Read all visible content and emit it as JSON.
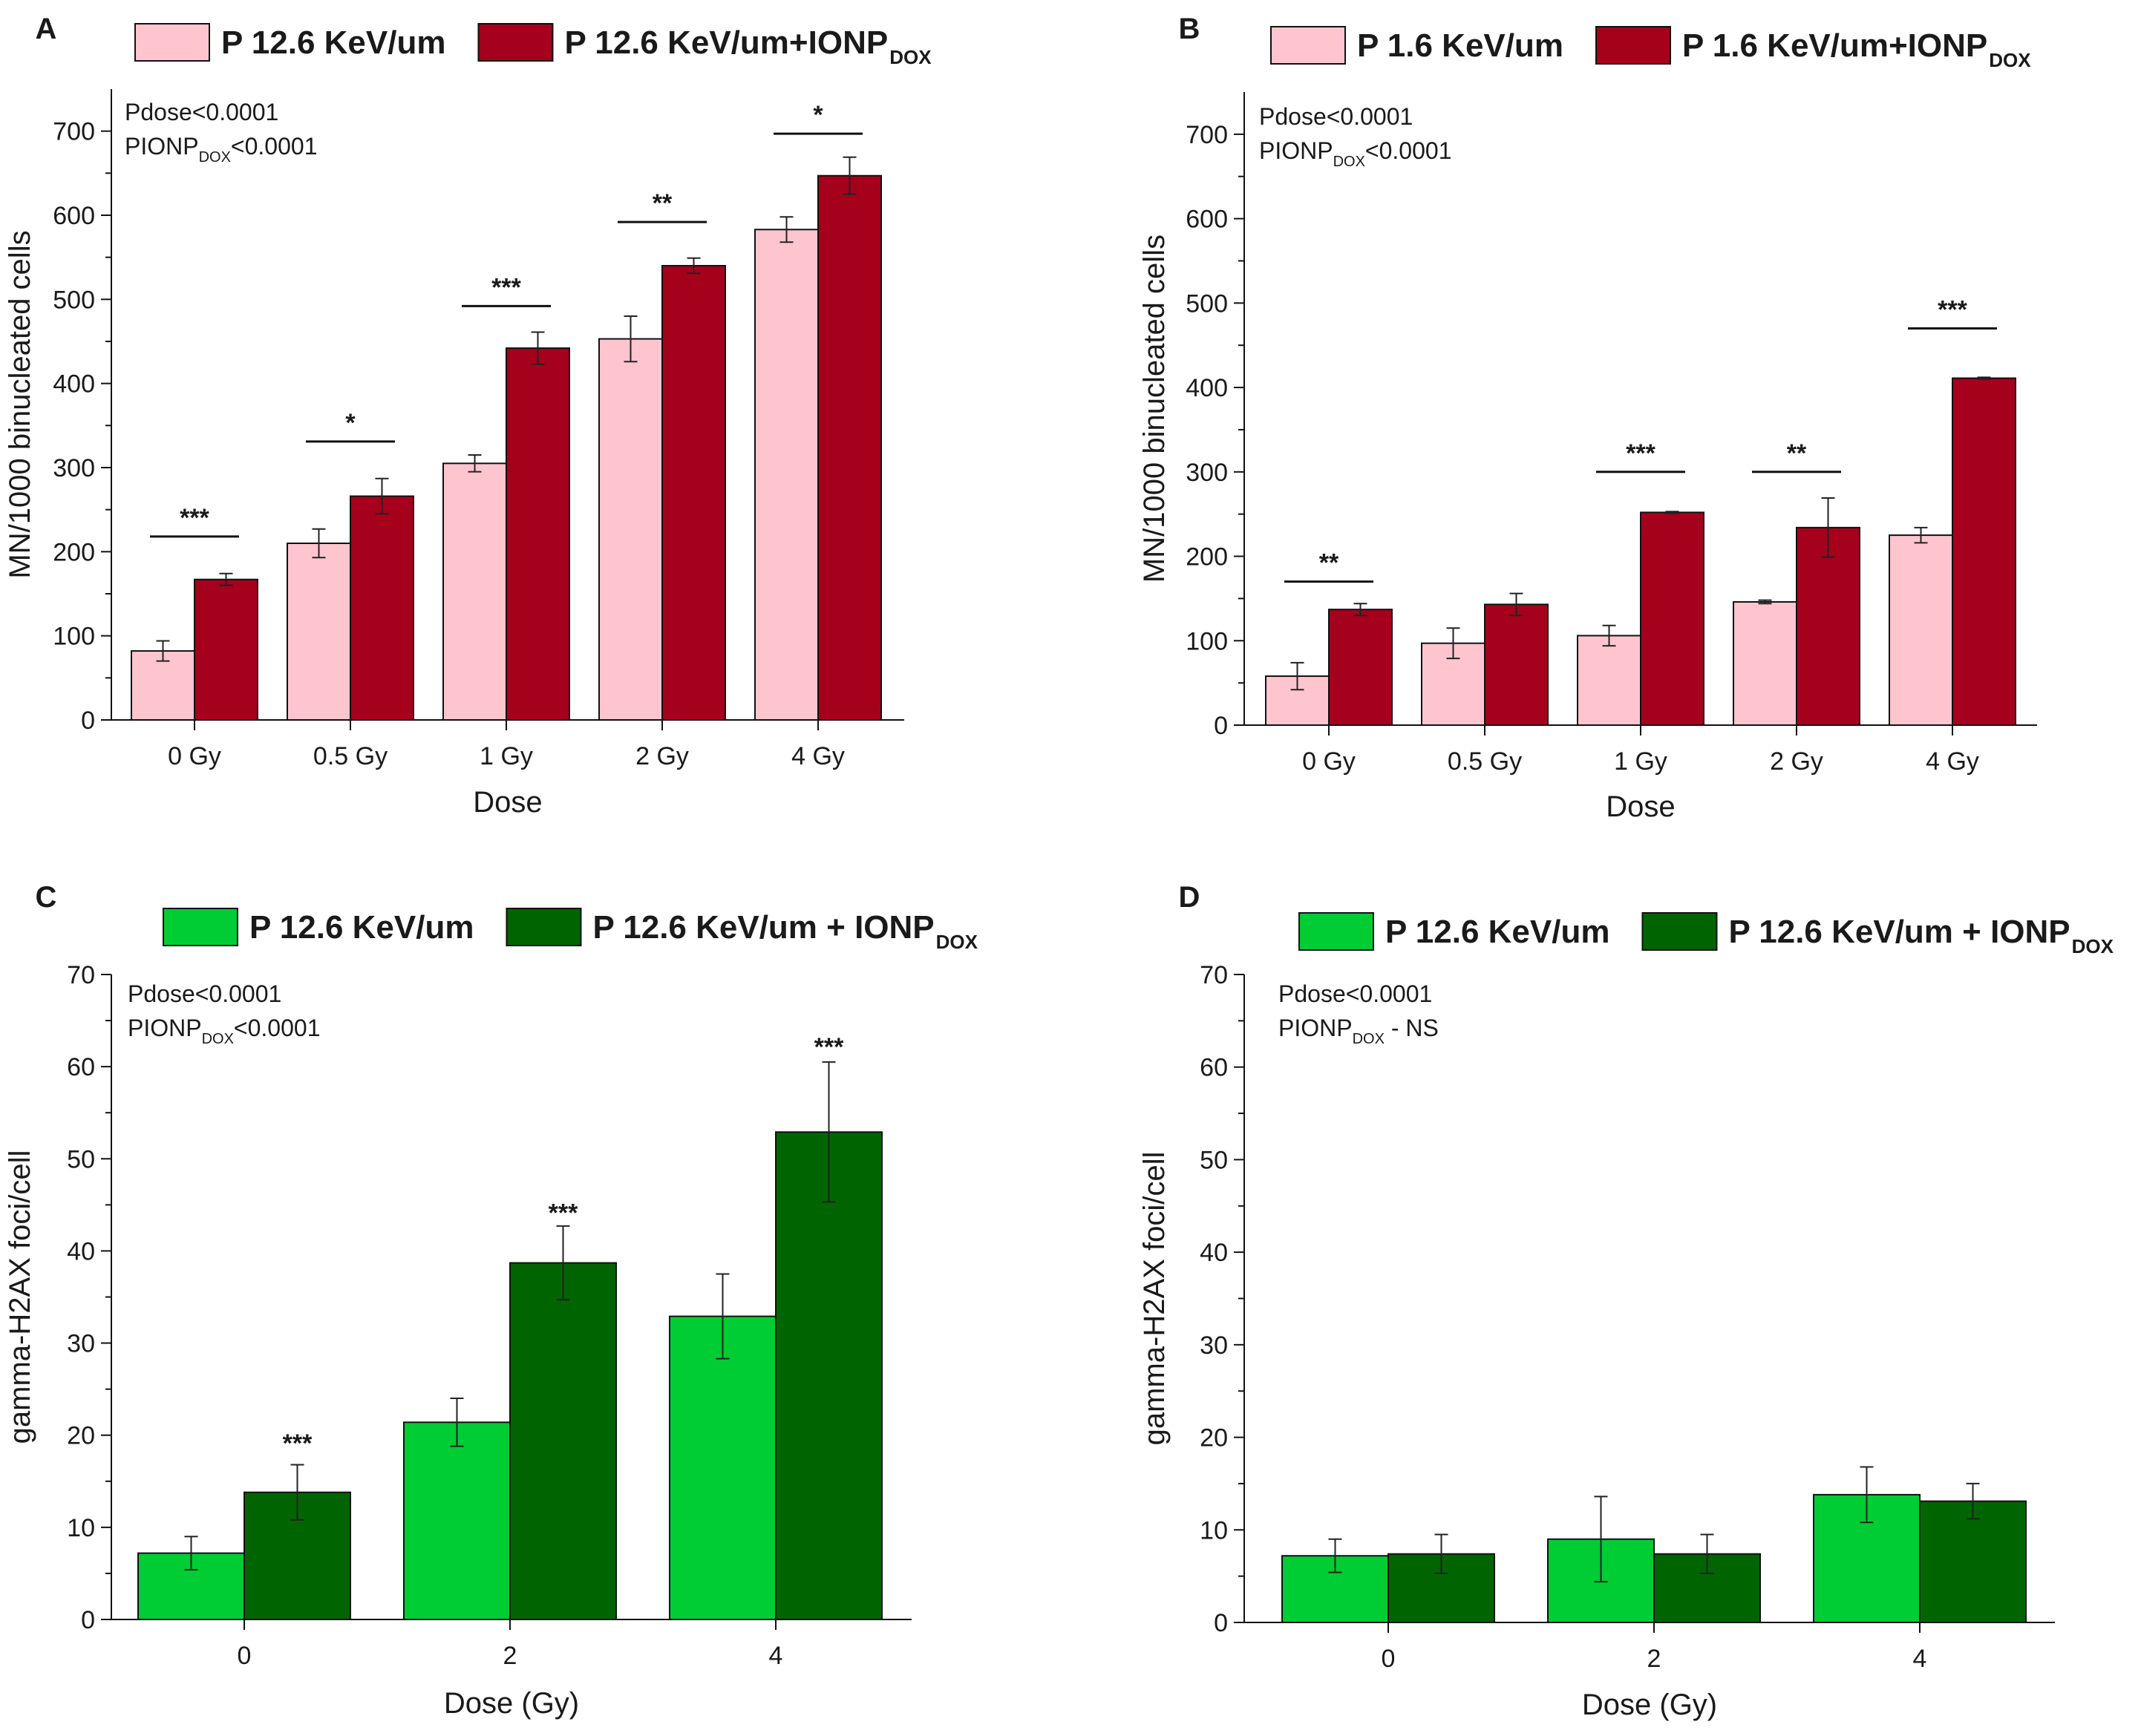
{
  "chart_data": [
    {
      "type": "bar",
      "panel": "A",
      "legend": [
        {
          "name": "P 12.6 KeV/um",
          "sub": ""
        },
        {
          "name": "P 12.6 KeV/um+IONP",
          "sub": "DOX"
        }
      ],
      "annotation": {
        "line1": "Pdose<0.0001",
        "line2_pre": "PIONP",
        "line2_sub": "DOX",
        "line2_post": "<0.0001"
      },
      "xlabel": "Dose",
      "ylabel": "MN/1000 binucleated cells",
      "ylim": [
        0,
        750
      ],
      "yticks": [
        0,
        100,
        200,
        300,
        400,
        500,
        600,
        700
      ],
      "categories": [
        "0 Gy",
        "0.5 Gy",
        "1 Gy",
        "2 Gy",
        "4 Gy"
      ],
      "series": [
        {
          "name": "P 12.6 KeV/um",
          "color": "#ffc5cf",
          "values": [
            82,
            210,
            305,
            453,
            583
          ],
          "errors": [
            12,
            17,
            10,
            27,
            15
          ]
        },
        {
          "name": "P 12.6 KeV/um+IONP DOX",
          "color": "#a5001c",
          "values": [
            167,
            266,
            442,
            540,
            647
          ],
          "errors": [
            7,
            21,
            19,
            9,
            22
          ]
        }
      ],
      "significance": [
        {
          "category": 0,
          "stars": "***",
          "y": 218
        },
        {
          "category": 1,
          "stars": "*",
          "y": 331
        },
        {
          "category": 2,
          "stars": "***",
          "y": 492
        },
        {
          "category": 3,
          "stars": "**",
          "y": 592
        },
        {
          "category": 4,
          "stars": "*",
          "y": 697
        }
      ]
    },
    {
      "type": "bar",
      "panel": "B",
      "legend": [
        {
          "name": "P 1.6 KeV/um",
          "sub": ""
        },
        {
          "name": "P 1.6 KeV/um+IONP",
          "sub": "DOX"
        }
      ],
      "annotation": {
        "line1": "Pdose<0.0001",
        "line2_pre": "PIONP",
        "line2_sub": "DOX",
        "line2_post": "<0.0001"
      },
      "xlabel": "Dose",
      "ylabel": "MN/1000 binucleated cells",
      "ylim": [
        0,
        750
      ],
      "yticks": [
        0,
        100,
        200,
        300,
        400,
        500,
        600,
        700
      ],
      "categories": [
        "0 Gy",
        "0.5 Gy",
        "1 Gy",
        "2 Gy",
        "4 Gy"
      ],
      "series": [
        {
          "name": "P 1.6 KeV/um",
          "color": "#ffc5cf",
          "values": [
            58,
            97,
            106,
            146,
            225
          ],
          "errors": [
            16,
            18,
            12,
            2,
            9
          ]
        },
        {
          "name": "P 1.6 KeV/um+IONP DOX",
          "color": "#a5001c",
          "values": [
            137,
            143,
            252,
            234,
            411
          ],
          "errors": [
            7,
            13,
            1,
            35,
            1
          ]
        }
      ],
      "significance": [
        {
          "category": 0,
          "stars": "**",
          "y": 170
        },
        {
          "category": 2,
          "stars": "***",
          "y": 300
        },
        {
          "category": 3,
          "stars": "**",
          "y": 300
        },
        {
          "category": 4,
          "stars": "***",
          "y": 470
        }
      ]
    },
    {
      "type": "bar",
      "panel": "C",
      "legend": [
        {
          "name": "P 12.6 KeV/um",
          "sub": ""
        },
        {
          "name": "P 12.6 KeV/um + IONP",
          "sub": "DOX"
        }
      ],
      "annotation": {
        "line1": "Pdose<0.0001",
        "line2_pre": "PIONP",
        "line2_sub": "DOX",
        "line2_post": "<0.0001"
      },
      "xlabel": "Dose (Gy)",
      "ylabel": "gamma-H2AX foci/cell",
      "ylim": [
        0,
        70
      ],
      "yticks": [
        0,
        10,
        20,
        30,
        40,
        50,
        60,
        70
      ],
      "categories": [
        "0",
        "2",
        "4"
      ],
      "series": [
        {
          "name": "P 12.6 KeV/um",
          "color": "#00cc33",
          "values": [
            7.2,
            21.4,
            32.9
          ],
          "errors": [
            1.8,
            2.6,
            4.6
          ]
        },
        {
          "name": "P 12.6 KeV/um + IONP DOX",
          "color": "#006400",
          "values": [
            13.8,
            38.7,
            52.9
          ],
          "errors": [
            3.0,
            4.0,
            7.6
          ]
        }
      ],
      "significance": [
        {
          "category": 0,
          "stars": "***",
          "y": 18.2
        },
        {
          "category": 1,
          "stars": "***",
          "y": 43.2
        },
        {
          "category": 2,
          "stars": "***",
          "y": 61.2
        }
      ]
    },
    {
      "type": "bar",
      "panel": "D",
      "legend": [
        {
          "name": "P 12.6 KeV/um",
          "sub": ""
        },
        {
          "name": "P 12.6 KeV/um + IONP",
          "sub": "DOX"
        }
      ],
      "annotation": {
        "line1": "Pdose<0.0001",
        "line2_pre": "PIONP",
        "line2_sub": "DOX",
        "line2_post": " - NS"
      },
      "xlabel": "Dose (Gy)",
      "ylabel": "gamma-H2AX foci/cell",
      "ylim": [
        0,
        70
      ],
      "yticks": [
        0,
        10,
        20,
        30,
        40,
        50,
        60,
        70
      ],
      "categories": [
        "0",
        "2",
        "4"
      ],
      "series": [
        {
          "name": "P 12.6 KeV/um",
          "color": "#00cc33",
          "values": [
            7.2,
            9.0,
            13.8
          ],
          "errors": [
            1.8,
            4.6,
            3.0
          ]
        },
        {
          "name": "P 12.6 KeV/um + IONP DOX",
          "color": "#006400",
          "values": [
            7.4,
            7.4,
            13.1
          ],
          "errors": [
            2.1,
            2.1,
            1.9
          ]
        }
      ],
      "significance": []
    }
  ]
}
